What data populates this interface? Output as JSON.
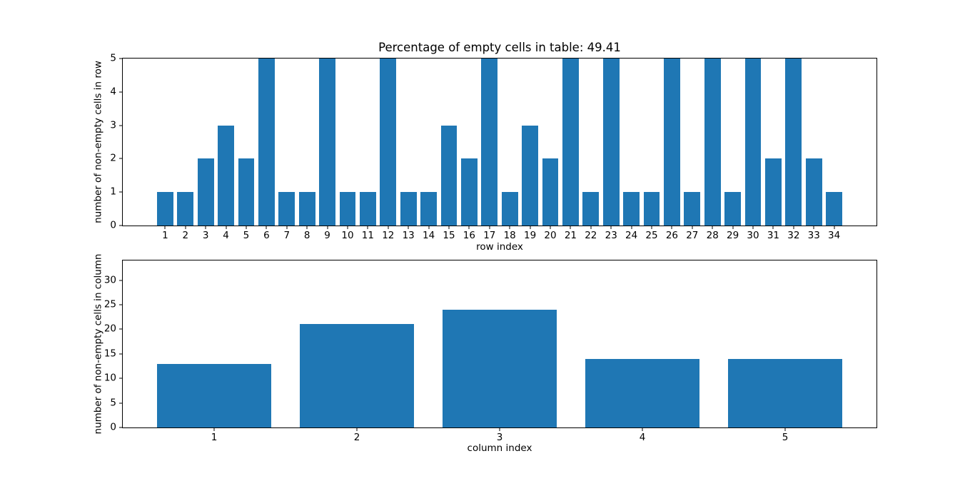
{
  "figure": {
    "background": "#ffffff",
    "bar_color": "#1f77b4"
  },
  "chart_data": [
    {
      "type": "bar",
      "title": "Percentage of empty cells in table: 49.41",
      "xlabel": "row index",
      "ylabel": "number of non-empty cells in row",
      "categories": [
        1,
        2,
        3,
        4,
        5,
        6,
        7,
        8,
        9,
        10,
        11,
        12,
        13,
        14,
        15,
        16,
        17,
        18,
        19,
        20,
        21,
        22,
        23,
        24,
        25,
        26,
        27,
        28,
        29,
        30,
        31,
        32,
        33,
        34
      ],
      "values": [
        1,
        1,
        2,
        3,
        2,
        5,
        1,
        1,
        5,
        1,
        1,
        5,
        1,
        1,
        3,
        2,
        5,
        1,
        3,
        2,
        5,
        1,
        5,
        1,
        1,
        5,
        1,
        5,
        1,
        5,
        2,
        5,
        2,
        1
      ],
      "bar_width": 0.8,
      "xlim": [
        -1.09,
        36.09
      ],
      "ylim": [
        0,
        5
      ],
      "yticks": [
        0,
        1,
        2,
        3,
        4,
        5
      ],
      "grid": false,
      "legend": "none"
    },
    {
      "type": "bar",
      "title": "",
      "xlabel": "column index",
      "ylabel": "number of non-empty cells in column",
      "categories": [
        1,
        2,
        3,
        4,
        5
      ],
      "values": [
        13,
        21,
        24,
        14,
        14
      ],
      "bar_width": 0.8,
      "xlim": [
        0.36,
        5.64
      ],
      "ylim": [
        0,
        34
      ],
      "yticks": [
        0,
        5,
        10,
        15,
        20,
        25,
        30
      ],
      "grid": false,
      "legend": "none"
    }
  ]
}
